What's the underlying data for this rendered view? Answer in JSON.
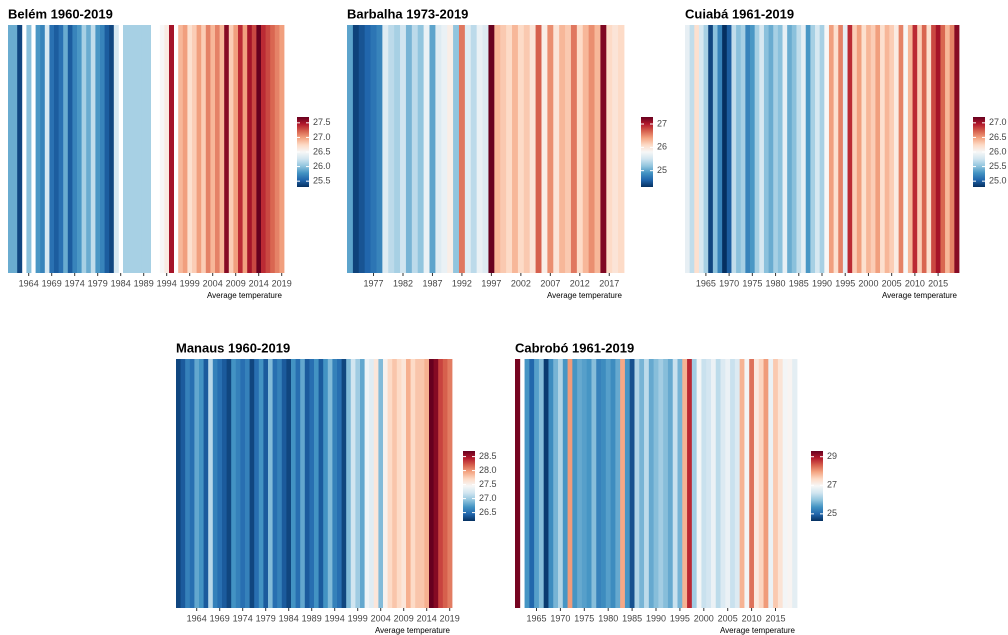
{
  "chart_data": [
    {
      "type": "stripes",
      "title": "Belém 1960-2019",
      "legend_title": "Average temperature",
      "colormap": [
        "#053061",
        "#2166ac",
        "#4393c3",
        "#92c5de",
        "#d1e5f0",
        "#f7f7f7",
        "#fddbc7",
        "#f4a582",
        "#d6604d",
        "#b2182b",
        "#67001f"
      ],
      "x": [
        1960,
        1961,
        1962,
        1963,
        1964,
        1965,
        1966,
        1967,
        1968,
        1969,
        1970,
        1971,
        1972,
        1973,
        1974,
        1975,
        1976,
        1977,
        1978,
        1979,
        1980,
        1981,
        1982,
        1983,
        1984,
        1985,
        1986,
        1987,
        1988,
        1989,
        1990,
        1991,
        1992,
        1993,
        1994,
        1995,
        1996,
        1997,
        1998,
        1999,
        2000,
        2001,
        2002,
        2003,
        2004,
        2005,
        2006,
        2007,
        2008,
        2009,
        2010,
        2011,
        2012,
        2013,
        2014,
        2015,
        2016,
        2017,
        2018,
        2019
      ],
      "values": [
        25.9,
        25.9,
        25.4,
        null,
        26.0,
        null,
        25.8,
        25.7,
        26.3,
        25.6,
        25.5,
        25.6,
        25.9,
        25.5,
        25.7,
        25.8,
        26.1,
        25.9,
        26.2,
        25.8,
        25.7,
        25.5,
        25.4,
        26.3,
        null,
        26.1,
        26.1,
        26.1,
        26.1,
        26.1,
        26.1,
        null,
        null,
        26.5,
        26.6,
        27.5,
        null,
        26.9,
        27.0,
        26.7,
        26.8,
        27.0,
        26.8,
        27.1,
        26.9,
        27.1,
        26.9,
        27.6,
        26.8,
        27.0,
        27.4,
        27.0,
        27.5,
        27.3,
        27.7,
        27.4,
        27.3,
        27.2,
        27.1,
        27.0
      ],
      "xticks": [
        1964,
        1969,
        1974,
        1979,
        1984,
        1989,
        1994,
        1999,
        2004,
        2009,
        2014,
        2019
      ],
      "clim": [
        25.3,
        27.7
      ],
      "colorbar_ticks": [
        25.5,
        {
          "value": 26,
          "label": "26.0"
        },
        26.5,
        {
          "value": 27,
          "label": "27.0"
        },
        27.5
      ]
    },
    {
      "type": "stripes",
      "title": "Barbalha 1973-2019",
      "legend_title": "Average temperature",
      "colormap": [
        "#053061",
        "#2166ac",
        "#4393c3",
        "#92c5de",
        "#d1e5f0",
        "#f7f7f7",
        "#fddbc7",
        "#f4a582",
        "#d6604d",
        "#b2182b",
        "#67001f"
      ],
      "x": [
        1973,
        1974,
        1975,
        1976,
        1977,
        1978,
        1979,
        1980,
        1981,
        1982,
        1983,
        1984,
        1985,
        1986,
        1987,
        1988,
        1989,
        1990,
        1991,
        1992,
        1993,
        1994,
        1995,
        1996,
        1997,
        1998,
        1999,
        2000,
        2001,
        2002,
        2003,
        2004,
        2005,
        2006,
        2007,
        2008,
        2009,
        2010,
        2011,
        2012,
        2013,
        2014,
        2015,
        2016,
        2017,
        2018,
        2019
      ],
      "values": [
        25.0,
        24.4,
        24.5,
        24.6,
        24.7,
        24.8,
        25.6,
        25.4,
        25.3,
        25.5,
        25.1,
        25.4,
        25.2,
        25.7,
        25.0,
        25.6,
        25.7,
        25.9,
        25.2,
        26.6,
        25.6,
        25.4,
        25.7,
        25.6,
        27.3,
        26.3,
        26.2,
        26.1,
        26.3,
        26.1,
        26.2,
        26.0,
        26.7,
        25.9,
        26.5,
        26.0,
        26.3,
        26.2,
        26.6,
        26.1,
        26.3,
        26.5,
        26.3,
        27.2,
        26.1,
        26.0,
        26.1
      ],
      "xticks": [
        1977,
        1982,
        1987,
        1992,
        1997,
        2002,
        2007,
        2012,
        2017
      ],
      "clim": [
        24.3,
        27.3
      ],
      "colorbar_ticks": [
        25,
        26,
        27
      ]
    },
    {
      "type": "stripes",
      "title": "Cuiabá 1961-2019",
      "legend_title": "Average temperature",
      "colormap": [
        "#053061",
        "#2166ac",
        "#4393c3",
        "#92c5de",
        "#d1e5f0",
        "#f7f7f7",
        "#fddbc7",
        "#f4a582",
        "#d6604d",
        "#b2182b",
        "#67001f"
      ],
      "x": [
        1961,
        1962,
        1963,
        1964,
        1965,
        1966,
        1967,
        1968,
        1969,
        1970,
        1971,
        1972,
        1973,
        1974,
        1975,
        1976,
        1977,
        1978,
        1979,
        1980,
        1981,
        1982,
        1983,
        1984,
        1985,
        1986,
        1987,
        1988,
        1989,
        1990,
        1991,
        1992,
        1993,
        1994,
        1995,
        1996,
        1997,
        1998,
        1999,
        2000,
        2001,
        2002,
        2003,
        2004,
        2005,
        2006,
        2007,
        2008,
        2009,
        2010,
        2011,
        2012,
        2013,
        2014,
        2015,
        2016,
        2017,
        2018,
        2019
      ],
      "values": [
        25.9,
        25.7,
        26.2,
        25.8,
        25.6,
        24.9,
        25.5,
        25.2,
        24.8,
        25.0,
        25.7,
        25.5,
        25.6,
        25.2,
        25.3,
        25.6,
        25.8,
        25.5,
        25.4,
        25.6,
        25.5,
        25.9,
        25.4,
        25.5,
        25.7,
        25.9,
        25.3,
        25.6,
        25.8,
        25.6,
        26.0,
        26.5,
        26.2,
        26.6,
        25.9,
        26.9,
        26.3,
        26.5,
        26.2,
        26.4,
        26.3,
        26.5,
        26.2,
        26.4,
        26.3,
        26.1,
        26.6,
        26.0,
        26.4,
        26.9,
        26.3,
        26.7,
        26.2,
        26.8,
        27.0,
        26.7,
        26.4,
        26.6,
        27.1
      ],
      "xticks": [
        1965,
        1970,
        1975,
        1980,
        1985,
        1990,
        1995,
        2000,
        2005,
        2010,
        2015
      ],
      "clim": [
        24.8,
        27.2
      ],
      "colorbar_ticks": [
        {
          "value": 25,
          "label": "25.0"
        },
        25.5,
        {
          "value": 26,
          "label": "26.0"
        },
        26.5,
        {
          "value": 27,
          "label": "27.0"
        }
      ]
    },
    {
      "type": "stripes",
      "title": "Manaus 1960-2019",
      "legend_title": "Average temperature",
      "colormap": [
        "#053061",
        "#2166ac",
        "#4393c3",
        "#92c5de",
        "#d1e5f0",
        "#f7f7f7",
        "#fddbc7",
        "#f4a582",
        "#d6604d",
        "#b2182b",
        "#67001f"
      ],
      "x": [
        1960,
        1961,
        1962,
        1963,
        1964,
        1965,
        1966,
        1967,
        1968,
        1969,
        1970,
        1971,
        1972,
        1973,
        1974,
        1975,
        1976,
        1977,
        1978,
        1979,
        1980,
        1981,
        1982,
        1983,
        1984,
        1985,
        1986,
        1987,
        1988,
        1989,
        1990,
        1991,
        1992,
        1993,
        1994,
        1995,
        1996,
        1997,
        1998,
        1999,
        2000,
        2001,
        2002,
        2003,
        2004,
        2005,
        2006,
        2007,
        2008,
        2009,
        2010,
        2011,
        2012,
        2013,
        2014,
        2015,
        2016,
        2017,
        2018,
        2019
      ],
      "values": [
        26.3,
        26.4,
        26.6,
        26.5,
        26.8,
        26.7,
        26.4,
        27.1,
        26.6,
        26.5,
        26.4,
        26.3,
        26.7,
        26.6,
        26.5,
        26.6,
        26.3,
        26.5,
        26.7,
        26.4,
        26.9,
        26.5,
        26.6,
        26.4,
        26.3,
        26.7,
        26.5,
        26.8,
        26.4,
        26.5,
        26.7,
        26.4,
        26.7,
        26.9,
        26.6,
        26.5,
        26.3,
        26.9,
        27.2,
        27.0,
        26.8,
        27.4,
        27.3,
        27.6,
        26.9,
        27.5,
        27.7,
        27.8,
        27.7,
        27.6,
        27.9,
        27.7,
        27.8,
        27.8,
        27.9,
        28.7,
        28.6,
        28.3,
        28.2,
        28.1
      ],
      "xticks": [
        1964,
        1969,
        1974,
        1979,
        1984,
        1989,
        1994,
        1999,
        2004,
        2009,
        2014,
        2019
      ],
      "clim": [
        26.2,
        28.7
      ],
      "colorbar_ticks": [
        26.5,
        {
          "value": 27,
          "label": "27.0"
        },
        27.5,
        {
          "value": 28,
          "label": "28.0"
        },
        28.5
      ]
    },
    {
      "type": "stripes",
      "title": "Cabrobó 1961-2019",
      "legend_title": "Average temperature",
      "colormap": [
        "#053061",
        "#2166ac",
        "#4393c3",
        "#92c5de",
        "#d1e5f0",
        "#f7f7f7",
        "#fddbc7",
        "#f4a582",
        "#d6604d",
        "#b2182b",
        "#67001f"
      ],
      "x": [
        1961,
        1962,
        1963,
        1964,
        1965,
        1966,
        1967,
        1968,
        1969,
        1970,
        1971,
        1972,
        1973,
        1974,
        1975,
        1976,
        1977,
        1978,
        1979,
        1980,
        1981,
        1982,
        1983,
        1984,
        1985,
        1986,
        1987,
        1988,
        1989,
        1990,
        1991,
        1992,
        1993,
        1994,
        1995,
        1996,
        1997,
        1998,
        1999,
        2000,
        2001,
        2002,
        2003,
        2004,
        2005,
        2006,
        2007,
        2008,
        2009,
        2010,
        2011,
        2012,
        2013,
        2014,
        2015,
        2016,
        2017,
        2018,
        2019
      ],
      "values": [
        29.3,
        null,
        25.5,
        25.0,
        25.6,
        25.9,
        24.6,
        25.4,
        25.8,
        26.2,
        25.5,
        28.0,
        25.5,
        25.7,
        25.6,
        25.5,
        25.9,
        25.3,
        25.4,
        25.6,
        25.4,
        25.7,
        27.9,
        25.5,
        24.8,
        26.2,
        25.8,
        26.3,
        25.7,
        25.9,
        26.1,
        25.9,
        25.7,
        26.4,
        25.8,
        27.8,
        28.8,
        26.1,
        26.9,
        26.4,
        26.5,
        26.8,
        26.3,
        26.6,
        26.8,
        26.4,
        26.6,
        27.8,
        26.9,
        28.3,
        27.2,
        27.5,
        28.0,
        26.8,
        27.6,
        27.3,
        26.9,
        27.0,
        26.7
      ],
      "xticks": [
        1965,
        1970,
        1975,
        1980,
        1985,
        1990,
        1995,
        2000,
        2005,
        2010,
        2015
      ],
      "clim": [
        24.5,
        29.4
      ],
      "colorbar_ticks": [
        25,
        27,
        29
      ]
    }
  ]
}
